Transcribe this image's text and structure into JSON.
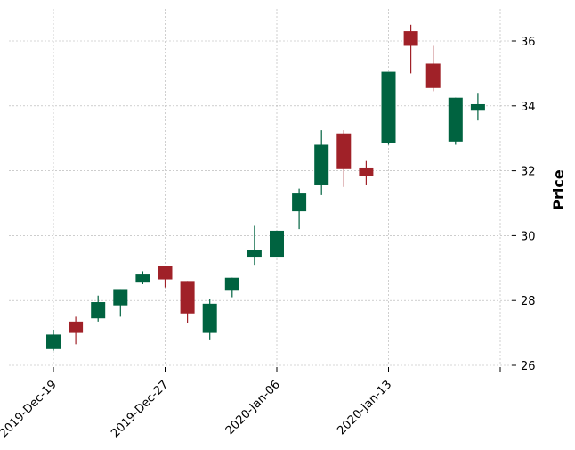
{
  "chart_data": {
    "type": "candlestick",
    "ylabel": "Price",
    "ylim": [
      26,
      37
    ],
    "yticks": [
      26,
      28,
      30,
      32,
      34,
      36
    ],
    "grid": true,
    "colors": {
      "up": "#006340",
      "down": "#A02128",
      "grid": "#b0b0b0",
      "axis": "#000000"
    },
    "xtick_labels": [
      {
        "index": 0,
        "label": "2019-Dec-19"
      },
      {
        "index": 5,
        "label": "2019-Dec-27"
      },
      {
        "index": 10,
        "label": "2020-Jan-06"
      },
      {
        "index": 15,
        "label": "2020-Jan-13"
      },
      {
        "index": 20,
        "label": ""
      }
    ],
    "candles": [
      {
        "open": 26.5,
        "high": 27.1,
        "low": 26.45,
        "close": 26.95
      },
      {
        "open": 27.35,
        "high": 27.5,
        "low": 26.65,
        "close": 27.0
      },
      {
        "open": 27.45,
        "high": 28.15,
        "low": 27.35,
        "close": 27.95
      },
      {
        "open": 27.85,
        "high": 28.35,
        "low": 27.5,
        "close": 28.35
      },
      {
        "open": 28.55,
        "high": 28.9,
        "low": 28.5,
        "close": 28.8
      },
      {
        "open": 29.05,
        "high": 29.05,
        "low": 28.4,
        "close": 28.65
      },
      {
        "open": 28.6,
        "high": 28.6,
        "low": 27.3,
        "close": 27.6
      },
      {
        "open": 27.0,
        "high": 28.05,
        "low": 26.8,
        "close": 27.9
      },
      {
        "open": 28.3,
        "high": 28.7,
        "low": 28.1,
        "close": 28.7
      },
      {
        "open": 29.35,
        "high": 30.3,
        "low": 29.1,
        "close": 29.55
      },
      {
        "open": 29.35,
        "high": 30.15,
        "low": 29.35,
        "close": 30.15
      },
      {
        "open": 30.75,
        "high": 31.45,
        "low": 30.2,
        "close": 31.3
      },
      {
        "open": 31.55,
        "high": 33.25,
        "low": 31.25,
        "close": 32.8
      },
      {
        "open": 33.15,
        "high": 33.25,
        "low": 31.5,
        "close": 32.05
      },
      {
        "open": 32.1,
        "high": 32.3,
        "low": 31.55,
        "close": 31.85
      },
      {
        "open": 32.85,
        "high": 35.05,
        "low": 32.8,
        "close": 35.05
      },
      {
        "open": 36.3,
        "high": 36.5,
        "low": 35.0,
        "close": 35.85
      },
      {
        "open": 35.3,
        "high": 35.85,
        "low": 34.45,
        "close": 34.55
      },
      {
        "open": 32.9,
        "high": 34.25,
        "low": 32.8,
        "close": 34.25
      },
      {
        "open": 33.85,
        "high": 34.4,
        "low": 33.55,
        "close": 34.05
      }
    ]
  }
}
